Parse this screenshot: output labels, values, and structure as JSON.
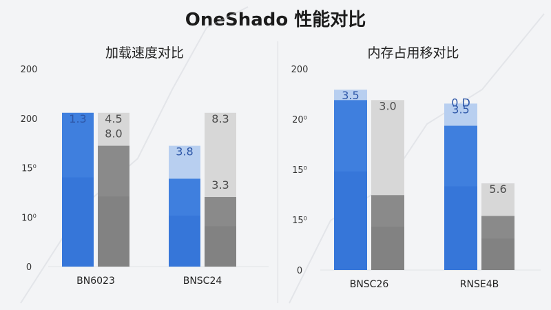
{
  "title": "OneShado 性能对比",
  "colors": {
    "background": "#f3f4f6",
    "blue": "#3f7fde",
    "blue_dark": "#2f6fd6",
    "blue_light": "#b8cff0",
    "gray": "#8a8a8a",
    "gray_dark": "#7c7c7c",
    "gray_light": "#d7d7d7",
    "label_blue": "#2e57a8",
    "label_gray": "#4d4d4d"
  },
  "chart_data": [
    {
      "type": "bar",
      "title": "加载速度对比",
      "ytick_labels": [
        "200",
        "200",
        "15⁰",
        "10⁰",
        "0"
      ],
      "categories": [
        "BN6023",
        "BNSC24"
      ],
      "series": [
        {
          "color": "blue",
          "values": [
            210,
            120
          ],
          "light_values": [
            210,
            165
          ],
          "labels": [
            "1.3",
            "3.8"
          ]
        },
        {
          "color": "gray",
          "values": [
            165,
            95
          ],
          "light_values": [
            210,
            210
          ],
          "labels": [
            "4.5",
            "8.3"
          ]
        }
      ],
      "extra_labels": [
        {
          "category": "BN6023",
          "series": 1,
          "text": "8.0"
        },
        {
          "category": "BNSC24",
          "series": 1,
          "text": "3.3"
        }
      ],
      "ylim": [
        0,
        270
      ]
    },
    {
      "type": "bar",
      "title": "内存占用移对比",
      "ytick_labels": [
        "200",
        "20⁰",
        "15⁰",
        "15⁰",
        "0"
      ],
      "categories": [
        "BNSC26",
        "RNSE4B"
      ],
      "series": [
        {
          "color": "blue",
          "values": [
            245,
            208
          ],
          "light_values": [
            260,
            240
          ],
          "labels": [
            "3.5",
            "3.5"
          ]
        },
        {
          "color": "gray",
          "values": [
            108,
            78
          ],
          "light_values": [
            245,
            125
          ],
          "labels": [
            "3.0",
            "5.6"
          ]
        }
      ],
      "extra_labels": [
        {
          "category": "RNSE4B",
          "series": 0,
          "text": "0 D"
        }
      ],
      "ylim": [
        0,
        290
      ]
    }
  ]
}
